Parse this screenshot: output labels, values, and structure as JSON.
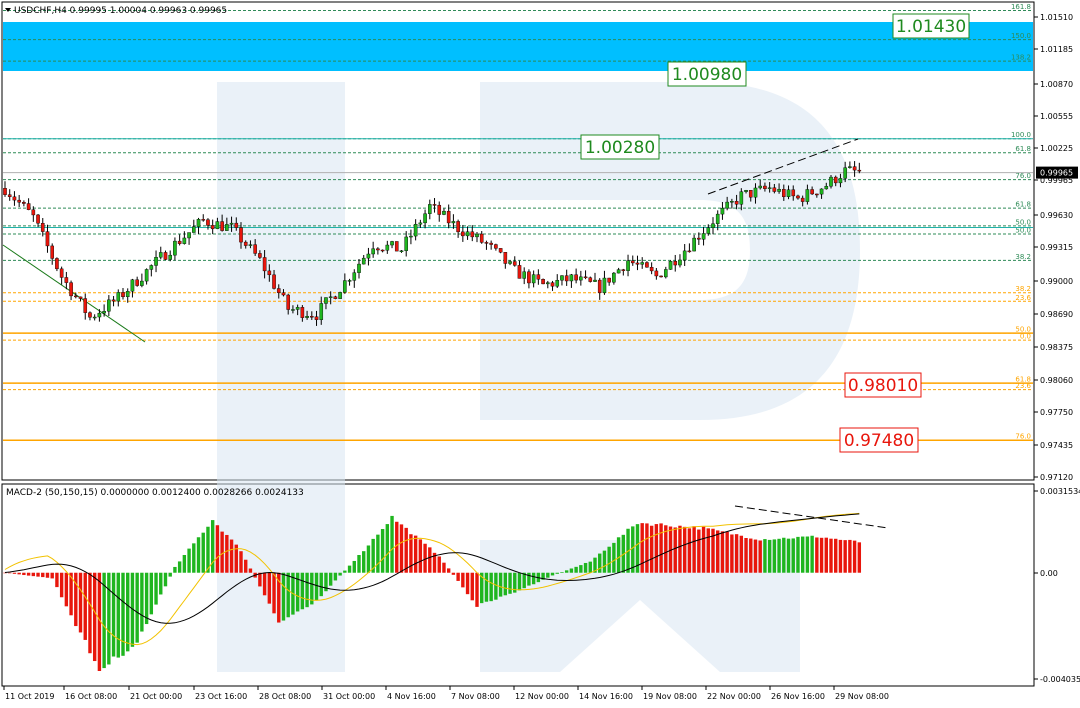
{
  "header": {
    "symbol_line": "USDCHF,H4  0.99995 1.00004 0.99963 0.99965",
    "macd_line": "MACD-2 (50,150,15) 0.0000000 0.0012400 0.0028266 0.0024133"
  },
  "colors": {
    "bull": "#1fb51f",
    "bear": "#e8160c",
    "target_zone": "#00bfff",
    "fib_up": "#2e8b57",
    "fib_down": "#ffa500",
    "price_tag_bg": "#ffffff",
    "signal_line": "#f2c200",
    "macd_line": "#000000"
  },
  "chart_data": [
    {
      "type": "candlestick",
      "title": "USDCHF,H4",
      "ohlc_header": {
        "open": 0.99995,
        "high": 1.00004,
        "low": 0.99963,
        "close": 0.99965
      },
      "ylim": [
        0.9712,
        1.0154
      ],
      "y_ticks": [
        "1.01510",
        "1.01185",
        "1.00870",
        "1.00555",
        "1.00225",
        "0.99965",
        "0.99630",
        "0.99315",
        "0.99000",
        "0.98690",
        "0.98375",
        "0.98060",
        "0.97750",
        "0.97435",
        "0.97120"
      ],
      "current_price": "0.99965",
      "x_labels": [
        "11 Oct 2019",
        "16 Oct 08:00",
        "21 Oct 00:00",
        "23 Oct 16:00",
        "28 Oct 08:00",
        "31 Oct 00:00",
        "4 Nov 16:00",
        "7 Nov 08:00",
        "12 Nov 00:00",
        "14 Nov 16:00",
        "19 Nov 08:00",
        "22 Nov 00:00",
        "26 Nov 16:00",
        "29 Nov 08:00"
      ],
      "close_path": [
        {
          "x": 0,
          "y": 0.9982
        },
        {
          "x": 6,
          "y": 0.9955
        },
        {
          "x": 12,
          "y": 0.99
        },
        {
          "x": 18,
          "y": 0.9862
        },
        {
          "x": 24,
          "y": 0.988
        },
        {
          "x": 30,
          "y": 0.9905
        },
        {
          "x": 36,
          "y": 0.993
        },
        {
          "x": 42,
          "y": 0.9952
        },
        {
          "x": 48,
          "y": 0.9945
        },
        {
          "x": 54,
          "y": 0.9915
        },
        {
          "x": 60,
          "y": 0.987
        },
        {
          "x": 66,
          "y": 0.9865
        },
        {
          "x": 72,
          "y": 0.9895
        },
        {
          "x": 78,
          "y": 0.993
        },
        {
          "x": 84,
          "y": 0.9925
        },
        {
          "x": 90,
          "y": 0.9965
        },
        {
          "x": 96,
          "y": 0.9945
        },
        {
          "x": 102,
          "y": 0.993
        },
        {
          "x": 108,
          "y": 0.9905
        },
        {
          "x": 114,
          "y": 0.9892
        },
        {
          "x": 120,
          "y": 0.9898
        },
        {
          "x": 126,
          "y": 0.989
        },
        {
          "x": 132,
          "y": 0.9915
        },
        {
          "x": 138,
          "y": 0.99
        },
        {
          "x": 144,
          "y": 0.9925
        },
        {
          "x": 150,
          "y": 0.9952
        },
        {
          "x": 156,
          "y": 0.9975
        },
        {
          "x": 162,
          "y": 0.9982
        },
        {
          "x": 168,
          "y": 0.9972
        },
        {
          "x": 174,
          "y": 0.9985
        },
        {
          "x": 178,
          "y": 0.9998
        },
        {
          "x": 181,
          "y": 0.9997
        }
      ],
      "fib_levels": [
        {
          "label": "161.8",
          "price": 1.0147,
          "color": "#2e8b57"
        },
        {
          "label": "150.0",
          "price": 1.012,
          "color": "#2e8b57"
        },
        {
          "label": "138.2",
          "price": 1.01,
          "color": "#2e8b57"
        },
        {
          "label": "100.0",
          "price": 1.0028,
          "color": "#2e8b57"
        },
        {
          "label": "61.8",
          "price": 1.0015,
          "color": "#2e8b57"
        },
        {
          "label": "76.0",
          "price": 0.999,
          "color": "#2e8b57"
        },
        {
          "label": "61.8",
          "price": 0.99635,
          "color": "#2e8b57"
        },
        {
          "label": "50.0",
          "price": 0.9947,
          "color": "#2e8b57"
        },
        {
          "label": "50.0",
          "price": 0.99395,
          "color": "#2e8b57"
        },
        {
          "label": "38.2",
          "price": 0.9915,
          "color": "#2e8b57"
        },
        {
          "label": "38.2",
          "price": 0.9885,
          "color": "#ffa500"
        },
        {
          "label": "23.6",
          "price": 0.9877,
          "color": "#ffa500"
        },
        {
          "label": "50.0",
          "price": 0.98475,
          "color": "#ffa500"
        },
        {
          "label": "0.0",
          "price": 0.9841,
          "color": "#ffa500"
        },
        {
          "label": "61.8",
          "price": 0.9801,
          "color": "#ffa500"
        },
        {
          "label": "23.6",
          "price": 0.9795,
          "color": "#ffa500"
        },
        {
          "label": "76.0",
          "price": 0.9748,
          "color": "#ffa500"
        }
      ],
      "targets": [
        {
          "label": "1.01430",
          "type": "up"
        },
        {
          "label": "1.00980",
          "type": "up"
        },
        {
          "label": "1.00280",
          "type": "up"
        },
        {
          "label": "0.98010",
          "type": "down"
        },
        {
          "label": "0.97480",
          "type": "down"
        }
      ]
    },
    {
      "type": "bar",
      "title": "MACD-2 (50,150,15)",
      "values": [
        0.0,
        0.00124,
        0.0028266,
        0.0024133
      ],
      "ylim": [
        -0.004035,
        0.003153
      ],
      "y_ticks": [
        "0.0031534",
        "0.00",
        "-0.004035"
      ],
      "histogram_shape": [
        {
          "x": 0,
          "y": 0.0
        },
        {
          "x": 10,
          "y": -0.0002
        },
        {
          "x": 20,
          "y": -0.0035
        },
        {
          "x": 28,
          "y": -0.0025
        },
        {
          "x": 36,
          "y": 0.0002
        },
        {
          "x": 44,
          "y": 0.0019
        },
        {
          "x": 50,
          "y": 0.0008
        },
        {
          "x": 58,
          "y": -0.0018
        },
        {
          "x": 66,
          "y": -0.001
        },
        {
          "x": 76,
          "y": 0.0008
        },
        {
          "x": 82,
          "y": 0.002
        },
        {
          "x": 92,
          "y": 0.0006
        },
        {
          "x": 100,
          "y": -0.0012
        },
        {
          "x": 108,
          "y": -0.0007
        },
        {
          "x": 116,
          "y": -0.0001
        },
        {
          "x": 124,
          "y": 0.0004
        },
        {
          "x": 134,
          "y": 0.0018
        },
        {
          "x": 148,
          "y": 0.0016
        },
        {
          "x": 160,
          "y": 0.0012
        },
        {
          "x": 172,
          "y": 0.0013
        },
        {
          "x": 181,
          "y": 0.0011
        }
      ]
    }
  ]
}
